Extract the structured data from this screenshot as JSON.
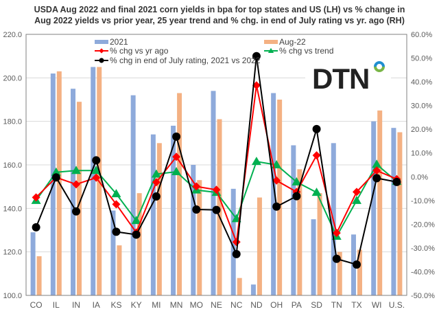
{
  "chart_data": {
    "type": "bar+line",
    "title": "USDA Aug 2022 and final 2021 corn yields in bpa for top states and US (LH) vs % change in Aug 2022 yields vs prior year, 25 year trend and % chg. in end of July rating vs yr. ago (RH)",
    "title_lines": [
      "USDA Aug 2022 and final 2021 corn yields in bpa for top states and US (LH) vs % change in",
      "Aug 2022 yields vs prior year, 25 year trend and % chg. in end of July rating vs yr. ago (RH)"
    ],
    "categories": [
      "CO",
      "IL",
      "IN",
      "IA",
      "KS",
      "KY",
      "MI",
      "MN",
      "MO",
      "NE",
      "NC",
      "ND",
      "OH",
      "PA",
      "SD",
      "TN",
      "TX",
      "WI",
      "U.S."
    ],
    "left_axis": {
      "range": [
        100,
        220
      ],
      "ticks": [
        "100.0",
        "120.0",
        "140.0",
        "160.0",
        "180.0",
        "200.0",
        "220.0"
      ],
      "tick_values": [
        100,
        120,
        140,
        160,
        180,
        200,
        220
      ]
    },
    "right_axis": {
      "range": [
        -50,
        60
      ],
      "ticks": [
        "-50.0%",
        "-40.0%",
        "-30.0%",
        "-20.0%",
        "-10.0%",
        "0.0%",
        "10.0%",
        "20.0%",
        "30.0%",
        "40.0%",
        "50.0%",
        "60.0%"
      ],
      "tick_values": [
        -50,
        -40,
        -30,
        -20,
        -10,
        0,
        10,
        20,
        30,
        40,
        50,
        60
      ]
    },
    "bar_series": [
      {
        "name": "2021",
        "color": "#8eaadb",
        "values": [
          129,
          202,
          195,
          205,
          139,
          192,
          174,
          178,
          160,
          194,
          149,
          105,
          193,
          169,
          135,
          170,
          128,
          180,
          177
        ]
      },
      {
        "name": "Aug-22",
        "color": "#f4b183",
        "values": [
          118,
          203,
          189,
          205,
          123,
          147,
          170,
          193,
          153,
          181,
          108,
          145,
          190,
          158,
          147,
          120,
          121,
          185,
          175
        ]
      }
    ],
    "line_series": [
      {
        "name": "%  chg vs yr ago",
        "color": "#ff0000",
        "marker": "diamond",
        "values": [
          -8.7,
          -0.3,
          -3.2,
          -0.4,
          -11.6,
          -23.5,
          -2.3,
          8.4,
          -4.1,
          -5.5,
          -27.5,
          38.5,
          -1.6,
          -6.4,
          9.0,
          -23.7,
          -6.4,
          2.6,
          -1.0
        ]
      },
      {
        "name": "% chg vs trend",
        "color": "#00b050",
        "marker": "triangle",
        "values": [
          -10.0,
          1.9,
          2.6,
          2.6,
          -7.2,
          -18.5,
          1.1,
          2.1,
          -5.6,
          -6.6,
          -17.7,
          6.4,
          5.0,
          -2.2,
          -6.6,
          -25.1,
          -10.0,
          5.2,
          -2.0
        ]
      },
      {
        "name": "% chg in end of July rating, 2021 vs 2022",
        "color": "#000000",
        "marker": "circle",
        "values": [
          -21.3,
          -0.3,
          -14.6,
          6.9,
          -23.2,
          -24.4,
          -8.3,
          16.9,
          -13.8,
          -14.0,
          -32.6,
          50.8,
          -12.6,
          -8.2,
          20.1,
          -34.6,
          -37.0,
          -0.6,
          -2.2
        ]
      }
    ],
    "grid": true,
    "legend_placement": "top"
  },
  "logo": {
    "text": "DTN",
    "accent_top": "#1f8fd1",
    "accent_bottom": "#7ab648"
  }
}
